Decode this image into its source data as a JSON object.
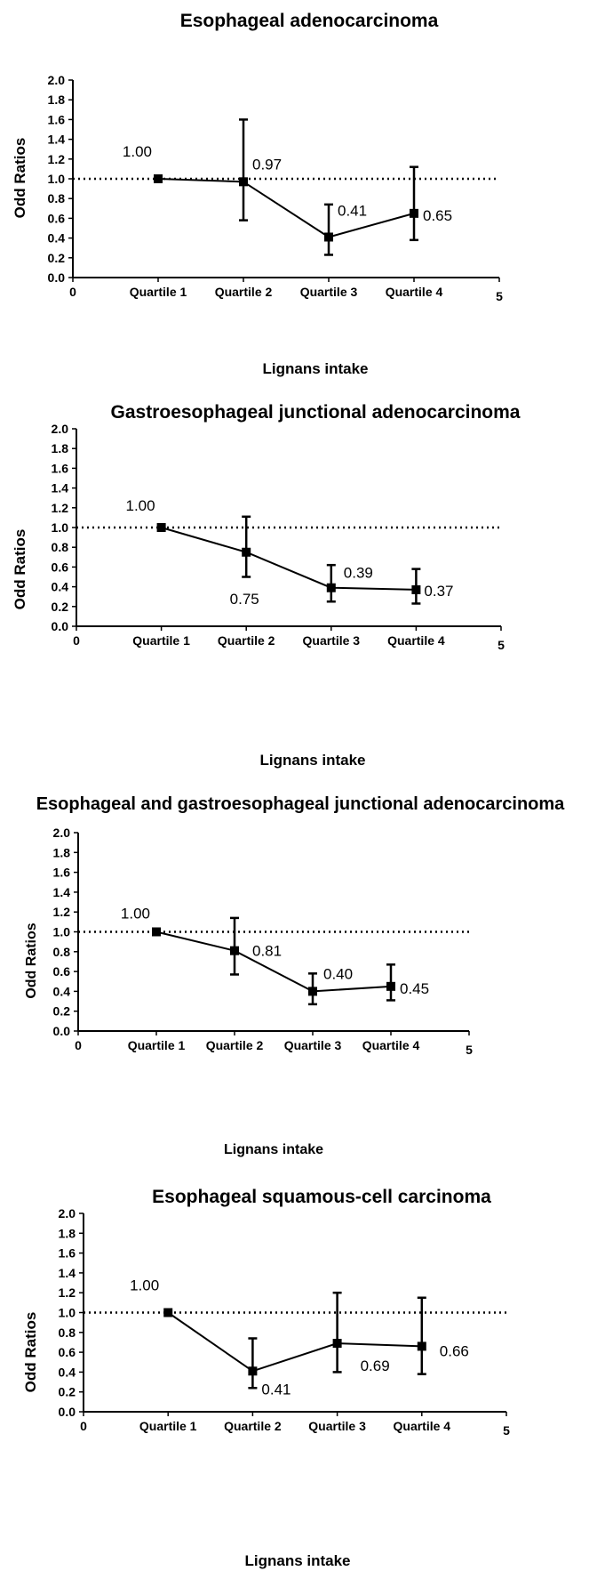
{
  "chart_data": [
    {
      "type": "line",
      "title": "Esophageal adenocarcinoma",
      "xlabel": "Lignans intake",
      "ylabel": "Odd Ratios",
      "xlim": [
        0,
        5
      ],
      "ylim": [
        0,
        2.0
      ],
      "x_ticks": [
        "0",
        "5"
      ],
      "y_ticks": [
        "0.0",
        "0.2",
        "0.4",
        "0.6",
        "0.8",
        "1.0",
        "1.2",
        "1.4",
        "1.6",
        "1.8",
        "2.0"
      ],
      "categories": [
        "Quartile 1",
        "Quartile 2",
        "Quartile 3",
        "Quartile 4"
      ],
      "x": [
        1,
        2,
        3,
        4
      ],
      "values": [
        1.0,
        0.97,
        0.41,
        0.65
      ],
      "ci_low": [
        1.0,
        0.58,
        0.23,
        0.38
      ],
      "ci_high": [
        1.0,
        1.6,
        0.74,
        1.12
      ],
      "data_labels": [
        "1.00",
        "0.97",
        "0.41",
        "0.65"
      ],
      "reference_line": 1.0
    },
    {
      "type": "line",
      "title": "Gastroesophageal junctional adenocarcinoma",
      "xlabel": "Lignans intake",
      "ylabel": "Odd Ratios",
      "xlim": [
        0,
        5
      ],
      "ylim": [
        0,
        2.0
      ],
      "x_ticks": [
        "0",
        "5"
      ],
      "y_ticks": [
        "0.0",
        "0.2",
        "0.4",
        "0.6",
        "0.8",
        "1.0",
        "1.2",
        "1.4",
        "1.6",
        "1.8",
        "2.0"
      ],
      "categories": [
        "Quartile 1",
        "Quartile 2",
        "Quartile 3",
        "Quartile 4"
      ],
      "x": [
        1,
        2,
        3,
        4
      ],
      "values": [
        1.0,
        0.75,
        0.39,
        0.37
      ],
      "ci_low": [
        1.0,
        0.5,
        0.25,
        0.23
      ],
      "ci_high": [
        1.0,
        1.11,
        0.62,
        0.58
      ],
      "data_labels": [
        "1.00",
        "0.75",
        "0.39",
        "0.37"
      ],
      "reference_line": 1.0
    },
    {
      "type": "line",
      "title": "Esophageal and gastroesophageal junctional adenocarcinoma",
      "xlabel": "Lignans intake",
      "ylabel": "Odd Ratios",
      "xlim": [
        0,
        5
      ],
      "ylim": [
        0,
        2.0
      ],
      "x_ticks": [
        "0",
        "5"
      ],
      "y_ticks": [
        "0.0",
        "0.2",
        "0.4",
        "0.6",
        "0.8",
        "1.0",
        "1.2",
        "1.4",
        "1.6",
        "1.8",
        "2.0"
      ],
      "categories": [
        "Quartile 1",
        "Quartile 2",
        "Quartile 3",
        "Quartile 4"
      ],
      "x": [
        1,
        2,
        3,
        4
      ],
      "values": [
        1.0,
        0.81,
        0.4,
        0.45
      ],
      "ci_low": [
        1.0,
        0.57,
        0.27,
        0.31
      ],
      "ci_high": [
        1.0,
        1.14,
        0.58,
        0.67
      ],
      "data_labels": [
        "1.00",
        "0.81",
        "0.40",
        "0.45"
      ],
      "reference_line": 1.0
    },
    {
      "type": "line",
      "title": "Esophageal squamous-cell carcinoma",
      "xlabel": "Lignans intake",
      "ylabel": "Odd Ratios",
      "xlim": [
        0,
        5
      ],
      "ylim": [
        0,
        2.0
      ],
      "x_ticks": [
        "0",
        "5"
      ],
      "y_ticks": [
        "0.0",
        "0.2",
        "0.4",
        "0.6",
        "0.8",
        "1.0",
        "1.2",
        "1.4",
        "1.6",
        "1.8",
        "2.0"
      ],
      "categories": [
        "Quartile 1",
        "Quartile 2",
        "Quartile 3",
        "Quartile 4"
      ],
      "x": [
        1,
        2,
        3,
        4
      ],
      "values": [
        1.0,
        0.41,
        0.69,
        0.66
      ],
      "ci_low": [
        1.0,
        0.24,
        0.4,
        0.38
      ],
      "ci_high": [
        1.0,
        0.74,
        1.2,
        1.15
      ],
      "data_labels": [
        "1.00",
        "0.41",
        "0.69",
        "0.66"
      ],
      "reference_line": 1.0
    }
  ]
}
